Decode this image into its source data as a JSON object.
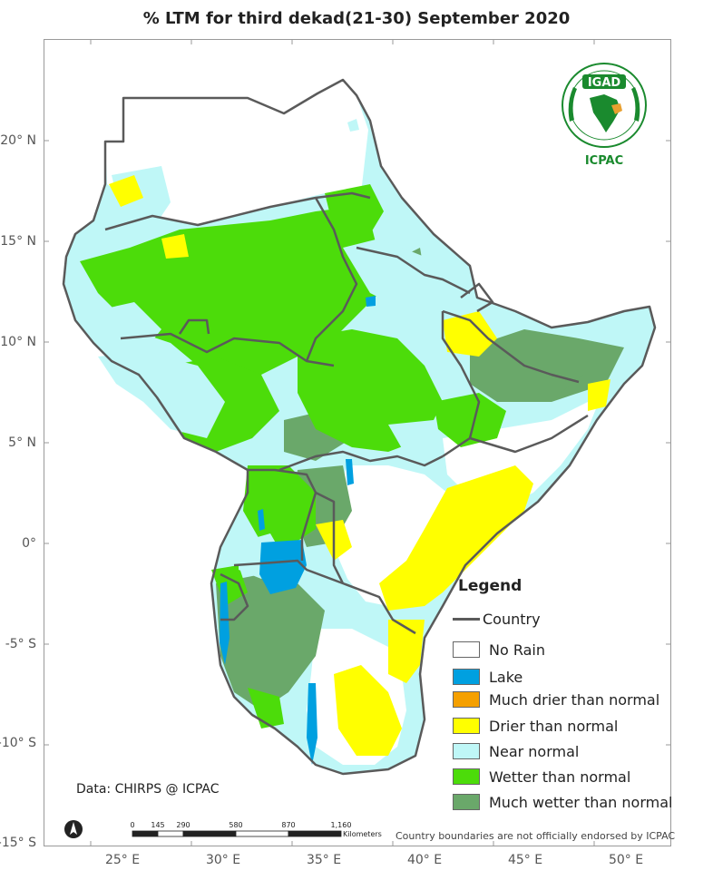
{
  "title": "% LTM  for  third  dekad(21-30) September 2020",
  "map": {
    "lat_labels": [
      "20° N",
      "15° N",
      "10° N",
      "5° N",
      "0°",
      "-5° S",
      "-10° S",
      "-15° S"
    ],
    "lon_labels": [
      "25° E",
      "30° E",
      "35° E",
      "40° E",
      "45° E",
      "50° E"
    ],
    "colors": {
      "no_rain": "#ffffff",
      "lake": "#00a0e0",
      "much_drier": "#f5a000",
      "drier": "#ffff00",
      "near_normal": "#bff7f7",
      "wetter": "#4cdc0a",
      "much_wetter": "#6aa86a",
      "country_border": "#5a5a5a"
    }
  },
  "legend": {
    "title": "Legend",
    "items": [
      {
        "label": "Country",
        "kind": "line"
      },
      {
        "label": "No Rain",
        "kind": "box",
        "color": "#ffffff"
      },
      {
        "label": "Lake",
        "kind": "box",
        "color": "#00a0e0"
      },
      {
        "label": "Much drier than normal",
        "kind": "box",
        "color": "#f5a000"
      },
      {
        "label": "Drier than normal",
        "kind": "box",
        "color": "#ffff00"
      },
      {
        "label": "Near normal",
        "kind": "box",
        "color": "#bff7f7"
      },
      {
        "label": "Wetter than normal",
        "kind": "box",
        "color": "#4cdc0a"
      },
      {
        "label": "Much wetter than normal",
        "kind": "box",
        "color": "#6aa86a"
      }
    ]
  },
  "logo": {
    "text": "IGAD",
    "org": "ICPAC"
  },
  "source": "Data: CHIRPS @ ICPAC",
  "scale": {
    "ticks": [
      "0",
      "145",
      "290",
      "580",
      "870",
      "1,160"
    ],
    "unit": "Kilometers"
  },
  "disclaimer": "Country boundaries are not officially endorsed by ICPAC"
}
